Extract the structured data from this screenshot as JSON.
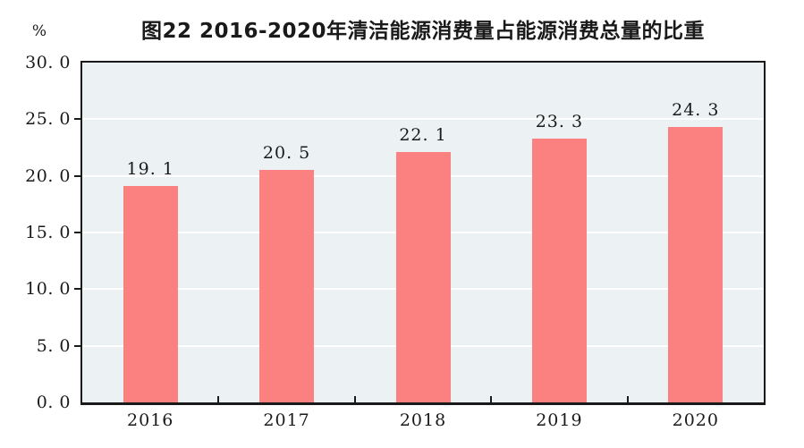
{
  "chart_data": {
    "type": "bar",
    "title": "图22  2016-2020年清洁能源消费量占能源消费总量的比重",
    "unit_label": "%",
    "categories": [
      "2016",
      "2017",
      "2018",
      "2019",
      "2020"
    ],
    "values": [
      19.1,
      20.5,
      22.1,
      23.3,
      24.3
    ],
    "value_labels": [
      "19. 1",
      "20. 5",
      "22. 1",
      "23. 3",
      "24. 3"
    ],
    "ylabel": "%",
    "xlabel": "",
    "ylim": [
      0,
      30
    ],
    "ytick_step": 5,
    "yticks": [
      0,
      5,
      10,
      15,
      20,
      25,
      30
    ],
    "ytick_labels": [
      "0. 0",
      "5. 0",
      "10. 0",
      "15. 0",
      "20. 0",
      "25. 0",
      "30. 0"
    ],
    "grid": true,
    "legend_position": "none",
    "colors": {
      "bar_fill": "#fb8080",
      "plot_background": "#ecf2f4",
      "gridline": "#ffffff",
      "axis": "#1a1a1a",
      "text": "#1a1a1a",
      "page_background": "#ffffff"
    }
  }
}
